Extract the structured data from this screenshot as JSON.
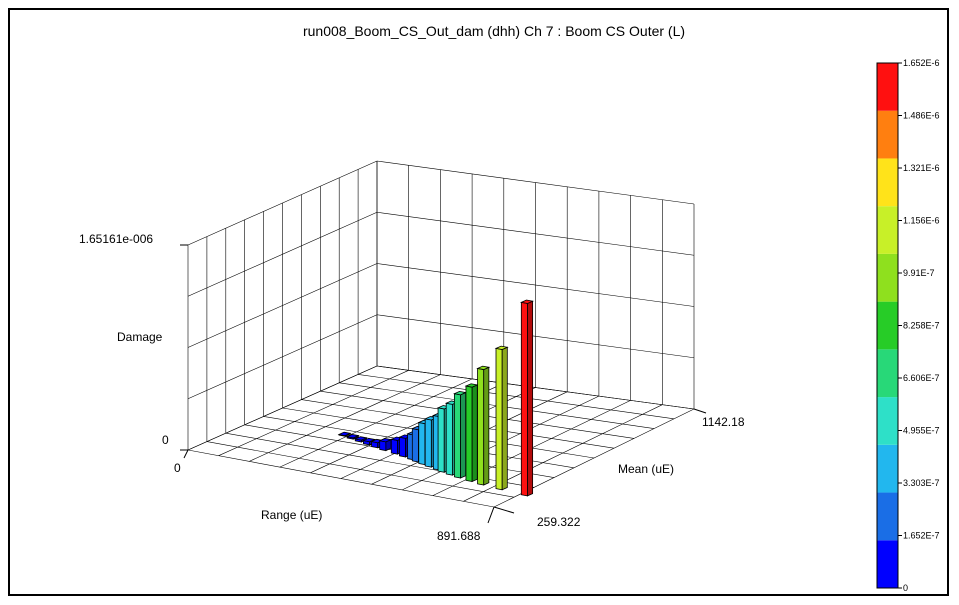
{
  "chart_data": {
    "type": "bar3d",
    "title": "run008_Boom_CS_Out_dam (dhh) Ch 7 : Boom CS Outer (L)",
    "xlabel": "Range (uE)",
    "ylabel": "Mean (uE)",
    "zlabel": "Damage",
    "x_ticks": [
      "0",
      "891.688"
    ],
    "y_ticks": [
      "259.322",
      "1142.18"
    ],
    "z_ticks": [
      "0",
      "1.65161e-006"
    ],
    "xlim": [
      0,
      891.688
    ],
    "ylim": [
      259.322,
      1142.18
    ],
    "zlim": [
      0,
      1.65161e-06
    ],
    "colorbar": {
      "labels": [
        "0",
        "1.652E-7",
        "3.303E-7",
        "4.955E-7",
        "6.606E-7",
        "8.258E-7",
        "9.91E-7",
        "1.156E-6",
        "1.321E-6",
        "1.486E-6",
        "1.652E-6"
      ],
      "colors": [
        "#0000ff",
        "#1a6ee6",
        "#22b7ee",
        "#2ee0c8",
        "#28d878",
        "#27cc27",
        "#8fe01e",
        "#c8f028",
        "#ffe31a",
        "#ff7f10",
        "#ff1010"
      ],
      "range": [
        0,
        1.652e-06
      ]
    },
    "bars": [
      {
        "range": 900,
        "mean": 400,
        "damage": 1.55e-06
      },
      {
        "range": 820,
        "mean": 410,
        "damage": 1.13e-06
      },
      {
        "range": 760,
        "mean": 420,
        "damage": 9.3e-07
      },
      {
        "range": 720,
        "mean": 430,
        "damage": 7.6e-07
      },
      {
        "range": 680,
        "mean": 440,
        "damage": 6.7e-07
      },
      {
        "range": 650,
        "mean": 450,
        "damage": 5.7e-07
      },
      {
        "range": 620,
        "mean": 460,
        "damage": 5.1e-07
      },
      {
        "range": 600,
        "mean": 470,
        "damage": 4.3e-07
      },
      {
        "range": 570,
        "mean": 480,
        "damage": 3.8e-07
      },
      {
        "range": 545,
        "mean": 490,
        "damage": 3.3e-07
      },
      {
        "range": 520,
        "mean": 500,
        "damage": 2.6e-07
      },
      {
        "range": 500,
        "mean": 510,
        "damage": 2e-07
      },
      {
        "range": 470,
        "mean": 520,
        "damage": 1.5e-07
      },
      {
        "range": 440,
        "mean": 530,
        "damage": 1.1e-07
      },
      {
        "range": 400,
        "mean": 540,
        "damage": 7e-08
      },
      {
        "range": 370,
        "mean": 550,
        "damage": 4e-08
      },
      {
        "range": 340,
        "mean": 560,
        "damage": 2.5e-08
      },
      {
        "range": 310,
        "mean": 570,
        "damage": 1.5e-08
      },
      {
        "range": 280,
        "mean": 580,
        "damage": 1e-08
      },
      {
        "range": 250,
        "mean": 590,
        "damage": 5e-09
      }
    ]
  }
}
